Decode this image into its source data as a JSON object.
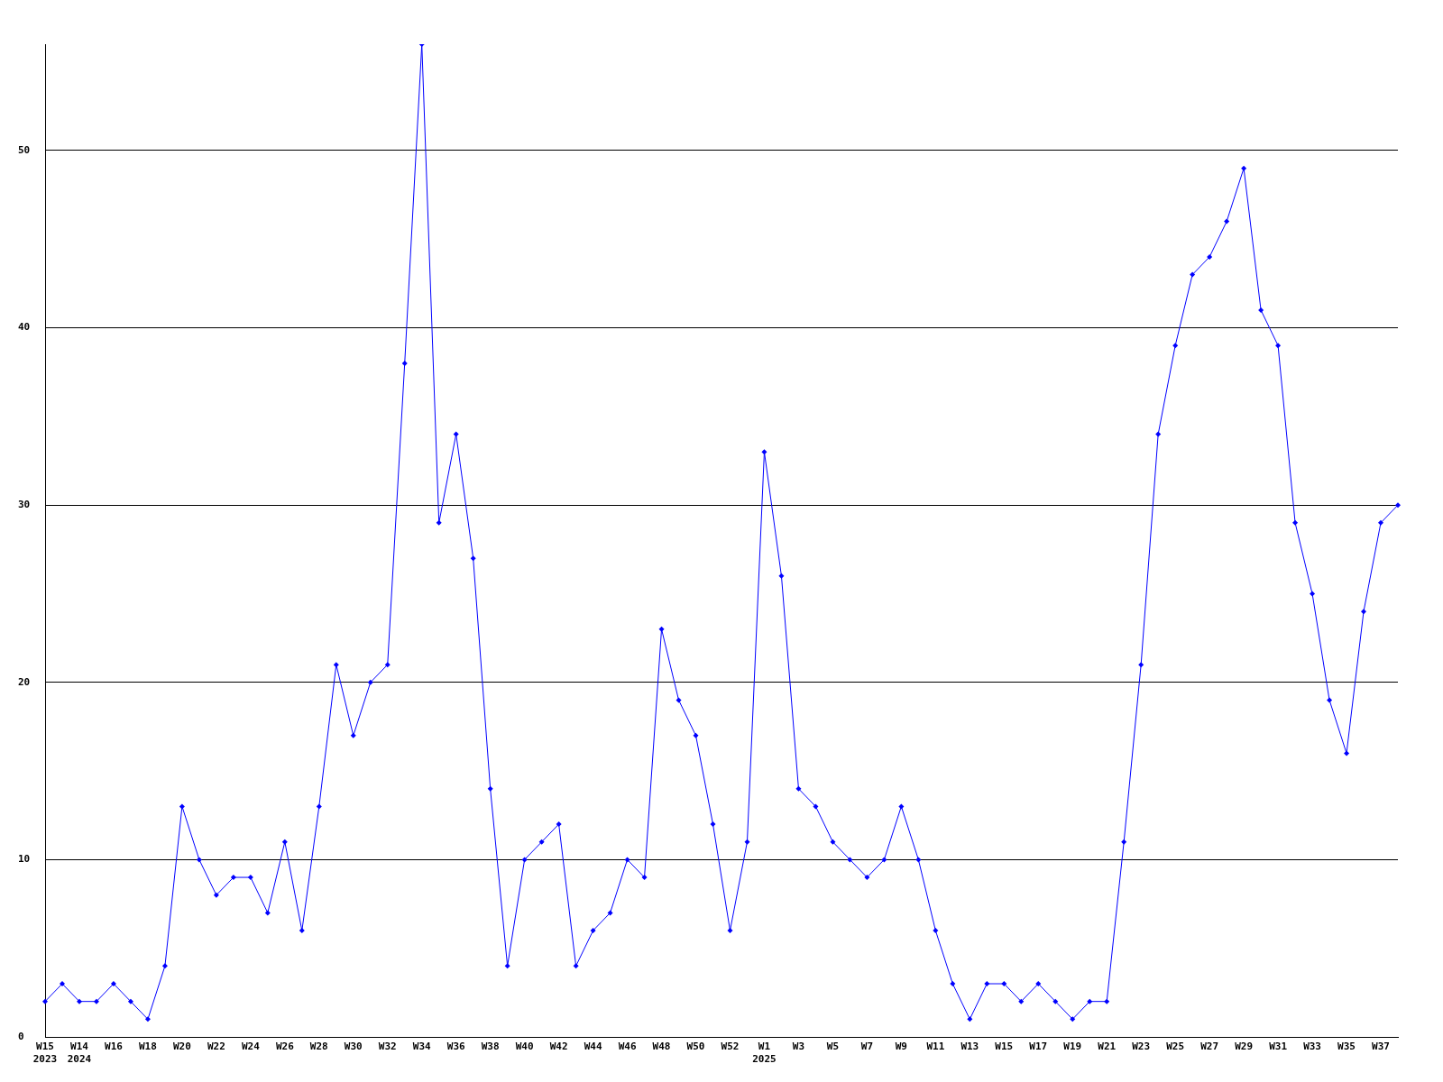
{
  "chart_data": {
    "type": "line",
    "categories": [
      "W15\n2023",
      null,
      "W14\n2024",
      null,
      "W16",
      null,
      "W18",
      null,
      "W20",
      null,
      "W22",
      null,
      "W24",
      null,
      "W26",
      null,
      "W28",
      null,
      "W30",
      null,
      "W32",
      null,
      "W34",
      null,
      "W36",
      null,
      "W38",
      null,
      "W40",
      null,
      "W42",
      null,
      "W44",
      null,
      "W46",
      null,
      "W48",
      null,
      "W50",
      null,
      "W52",
      null,
      "W1\n2025",
      null,
      "W3",
      null,
      "W5",
      null,
      "W7",
      null,
      "W9",
      null,
      "W11",
      null,
      "W13",
      null,
      "W15",
      null,
      "W17",
      null,
      "W19",
      null,
      "W21",
      null,
      "W23",
      null,
      "W25",
      null,
      "W27",
      null,
      "W29",
      null,
      "W31",
      null,
      "W33",
      null,
      "W35",
      null,
      "W37",
      null
    ],
    "values": [
      2,
      3,
      2,
      2,
      3,
      2,
      1,
      4,
      13,
      10,
      8,
      9,
      9,
      7,
      11,
      6,
      13,
      21,
      17,
      20,
      21,
      38,
      56,
      29,
      34,
      27,
      14,
      4,
      10,
      11,
      12,
      4,
      6,
      7,
      10,
      9,
      23,
      19,
      17,
      12,
      6,
      11,
      33,
      26,
      14,
      13,
      11,
      10,
      9,
      10,
      13,
      10,
      6,
      3,
      1,
      3,
      3,
      2,
      3,
      2,
      1,
      2,
      2,
      11,
      21,
      34,
      39,
      43,
      44,
      46,
      49,
      41,
      39,
      29,
      25,
      19,
      16,
      24,
      29,
      30
    ],
    "color": "#0000ff",
    "ylim": [
      0,
      56
    ],
    "yticks": [
      0,
      10,
      20,
      30,
      40,
      50
    ],
    "grid": "y",
    "marker": "diamond",
    "line_style": "solid"
  }
}
